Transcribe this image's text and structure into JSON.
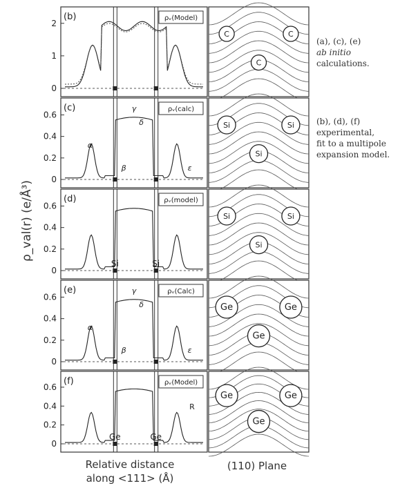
{
  "y_axis_label": "ρ_val(r)  (e/Å³)",
  "x_axis_label_line1": "Relative distance",
  "x_axis_label_line2": "along <111>  (Å)",
  "plane_label": "(110) Plane",
  "panels": [
    {
      "tag": "(b)",
      "legend": "ρᵥ(Model)",
      "yticks": [
        "0",
        "1",
        "2"
      ],
      "ymax": 2.25,
      "atom_labels": [],
      "greek": [],
      "atom_symbol": "C"
    },
    {
      "tag": "(c)",
      "legend": "ρᵥ(calc)",
      "yticks": [
        "0",
        "0.2",
        "0.4",
        "0.6"
      ],
      "ymax": 0.68,
      "atom_labels": [],
      "greek": [
        "α",
        "β",
        "γ",
        "δ",
        "ε"
      ],
      "atom_symbol": "Si"
    },
    {
      "tag": "(d)",
      "legend": "ρᵥ(model)",
      "yticks": [
        "0",
        "0.2",
        "0.4",
        "0.6"
      ],
      "ymax": 0.68,
      "atom_labels": [
        "Si",
        "Si"
      ],
      "greek": [],
      "atom_symbol": "Si"
    },
    {
      "tag": "(e)",
      "legend": "ρᵥ(Calc)",
      "yticks": [
        "0",
        "0.2",
        "0.4",
        "0.6"
      ],
      "ymax": 0.68,
      "atom_labels": [],
      "greek": [
        "α",
        "β",
        "γ",
        "δ",
        "ε"
      ],
      "atom_symbol": "Ge"
    },
    {
      "tag": "(f)",
      "legend": "ρᵥ(Model)",
      "yticks": [
        "0",
        "0.2",
        "0.4",
        "0.6"
      ],
      "ymax": 0.68,
      "atom_labels": [
        "Ge",
        "Ge"
      ],
      "greek": [],
      "atom_symbol": "Ge",
      "extra_label": "R"
    }
  ],
  "captions": {
    "first": {
      "line1": "(a), (c), (e)",
      "line2": "ab initio",
      "line3": "calculations."
    },
    "second": {
      "line1": "(b), (d), (f)",
      "line2": "experimental,",
      "line3": "fit to a multipole",
      "line4": "expansion model."
    }
  }
}
